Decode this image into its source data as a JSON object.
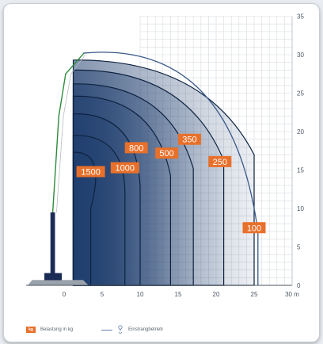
{
  "chart_data": {
    "type": "area",
    "x_ticks": [
      "0",
      "5",
      "10",
      "15",
      "20",
      "25",
      "30 m"
    ],
    "y_ticks": [
      "0",
      "5",
      "10",
      "15",
      "20",
      "25",
      "30",
      "35"
    ],
    "xlim": [
      -5,
      30
    ],
    "ylim": [
      0,
      35
    ],
    "grid": true,
    "boundary_radius": 30.2,
    "zones": [
      {
        "label": "1500",
        "max_radius": 3.5,
        "height": 17.3,
        "label_x": 3.5,
        "label_y": 14.8
      },
      {
        "label": "1000",
        "max_radius": 8.0,
        "height": 19.5,
        "label_x": 8.0,
        "label_y": 15.3
      },
      {
        "label": "800",
        "max_radius": 10.0,
        "height": 22.3,
        "label_x": 9.5,
        "label_y": 17.9
      },
      {
        "label": "500",
        "max_radius": 14.0,
        "height": 24.6,
        "label_x": 13.5,
        "label_y": 17.2
      },
      {
        "label": "350",
        "max_radius": 17.0,
        "height": 26.2,
        "label_x": 16.5,
        "label_y": 19.0
      },
      {
        "label": "250",
        "max_radius": 21.0,
        "height": 28.0,
        "label_x": 20.5,
        "label_y": 16.1
      },
      {
        "label": "100",
        "max_radius": 25.0,
        "height": 29.3,
        "label_x": 25.0,
        "label_y": 7.5
      }
    ],
    "colors": {
      "load_tag": "#e8702a",
      "zone_fill": "#1f3e6e",
      "zone_line": "#0e2240",
      "grid": "#d8dcdf",
      "boom": "#2d8a3c",
      "crawler": "#1a2b55"
    }
  },
  "legend": {
    "load_icon_text": "kg",
    "load_label": "Belastung in kg",
    "line_label": "Einstrangbetrieb"
  },
  "icons": {
    "hook": "crane-hook-icon",
    "load_tag": "load-tag-icon"
  }
}
